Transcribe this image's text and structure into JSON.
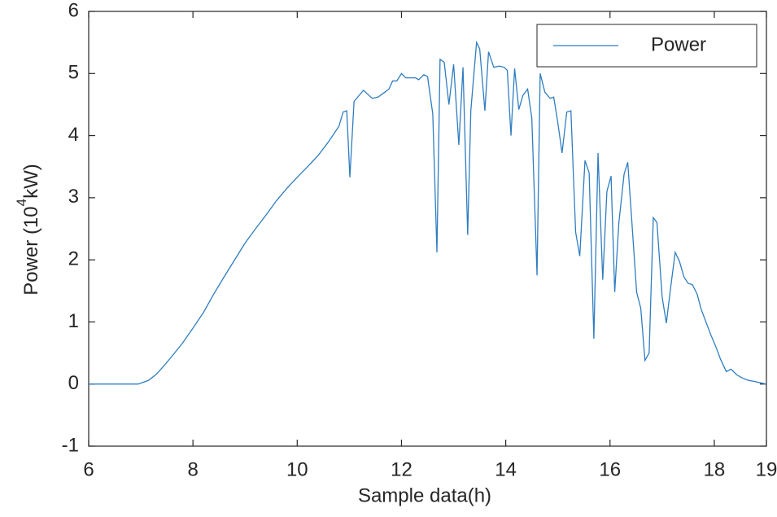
{
  "chart_data": {
    "type": "line",
    "xlabel": "Sample data(h)",
    "ylabel": [
      "Power (10",
      "4",
      "kW)"
    ],
    "xlim": [
      6,
      19
    ],
    "xticks": [
      6,
      8,
      10,
      12,
      14,
      16,
      18,
      19
    ],
    "ylim": [
      -1,
      6
    ],
    "yticks": [
      -1,
      0,
      1,
      2,
      3,
      4,
      5,
      6
    ],
    "legend": "upper right",
    "series": [
      {
        "name": "Power",
        "color": "#2f7dc0",
        "x": [
          6.0,
          6.95,
          7.15,
          7.3,
          7.45,
          7.6,
          7.8,
          8.0,
          8.2,
          8.4,
          8.6,
          8.8,
          9.0,
          9.2,
          9.4,
          9.6,
          9.8,
          10.0,
          10.2,
          10.4,
          10.6,
          10.8,
          10.88,
          10.95,
          11.01,
          11.09,
          11.27,
          11.44,
          11.55,
          11.68,
          11.76,
          11.83,
          11.91,
          12.0,
          12.08,
          12.18,
          12.27,
          12.33,
          12.43,
          12.5,
          12.6,
          12.68,
          12.74,
          12.82,
          12.91,
          13.0,
          13.1,
          13.18,
          13.27,
          13.33,
          13.44,
          13.5,
          13.6,
          13.67,
          13.77,
          13.88,
          13.97,
          14.03,
          14.1,
          14.17,
          14.25,
          14.33,
          14.42,
          14.5,
          14.6,
          14.66,
          14.75,
          14.85,
          14.92,
          15.0,
          15.08,
          15.17,
          15.25,
          15.34,
          15.42,
          15.52,
          15.6,
          15.69,
          15.77,
          15.86,
          15.94,
          16.02,
          16.09,
          16.17,
          16.27,
          16.34,
          16.42,
          16.51,
          16.59,
          16.67,
          16.75,
          16.83,
          16.9,
          17.0,
          17.08,
          17.17,
          17.25,
          17.33,
          17.42,
          17.5,
          17.58,
          17.67,
          17.75,
          17.84,
          17.93,
          18.03,
          18.12,
          18.23,
          18.32,
          18.43,
          18.53,
          18.65,
          18.78,
          18.88,
          19.0
        ],
        "values": [
          0,
          0,
          0.06,
          0.16,
          0.3,
          0.45,
          0.66,
          0.9,
          1.15,
          1.45,
          1.73,
          2.0,
          2.27,
          2.5,
          2.72,
          2.95,
          3.15,
          3.33,
          3.5,
          3.68,
          3.9,
          4.15,
          4.38,
          4.4,
          3.33,
          4.55,
          4.73,
          4.6,
          4.62,
          4.7,
          4.75,
          4.88,
          4.88,
          5.0,
          4.93,
          4.93,
          4.93,
          4.9,
          4.98,
          4.95,
          4.35,
          2.12,
          5.23,
          5.18,
          4.5,
          5.15,
          3.85,
          5.1,
          2.4,
          4.4,
          5.5,
          5.4,
          4.4,
          5.35,
          5.1,
          5.12,
          5.1,
          5.05,
          4.0,
          5.08,
          4.42,
          4.65,
          4.75,
          4.28,
          1.75,
          5.0,
          4.7,
          4.6,
          4.62,
          4.2,
          3.72,
          4.38,
          4.4,
          2.45,
          2.06,
          3.6,
          3.4,
          0.73,
          3.72,
          1.68,
          3.1,
          3.35,
          1.48,
          2.6,
          3.38,
          3.57,
          2.6,
          1.48,
          1.22,
          0.38,
          0.5,
          2.68,
          2.6,
          1.4,
          0.98,
          1.6,
          2.12,
          1.98,
          1.72,
          1.62,
          1.6,
          1.45,
          1.2,
          1.0,
          0.8,
          0.6,
          0.4,
          0.2,
          0.24,
          0.15,
          0.1,
          0.06,
          0.04,
          0.02,
          0
        ]
      }
    ]
  }
}
